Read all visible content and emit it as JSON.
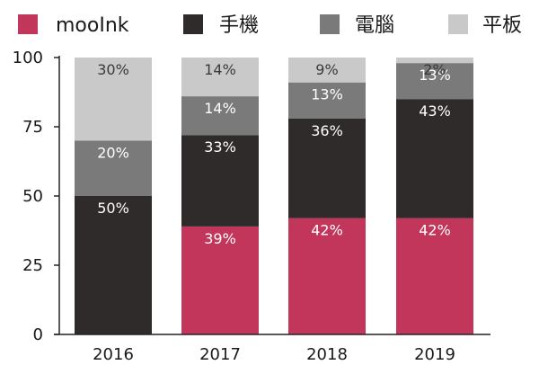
{
  "chart_data": {
    "type": "bar",
    "stacked": true,
    "categories": [
      "2016",
      "2017",
      "2018",
      "2019"
    ],
    "series": [
      {
        "name": "mooInk",
        "color": "#c1365a",
        "values": [
          0,
          39,
          42,
          42
        ],
        "labels": [
          "",
          "39%",
          "42%",
          "42%"
        ]
      },
      {
        "name": "手機",
        "color": "#2f2b2a",
        "values": [
          50,
          33,
          36,
          43
        ],
        "labels": [
          "50%",
          "33%",
          "36%",
          "43%"
        ]
      },
      {
        "name": "電腦",
        "color": "#7a7a7a",
        "values": [
          20,
          14,
          13,
          13
        ],
        "labels": [
          "20%",
          "14%",
          "13%",
          "13%"
        ]
      },
      {
        "name": "平板",
        "color": "#c9c9c9",
        "values": [
          30,
          14,
          9,
          2
        ],
        "labels": [
          "30%",
          "14%",
          "9%",
          "2%"
        ]
      }
    ],
    "yticks": [
      "0",
      "25",
      "50",
      "75",
      "100"
    ],
    "ylim": [
      0,
      100
    ],
    "title": "",
    "xlabel": "",
    "ylabel": "",
    "legend_position": "top",
    "background_bar_color": "#dcdcdc",
    "grid": false
  }
}
